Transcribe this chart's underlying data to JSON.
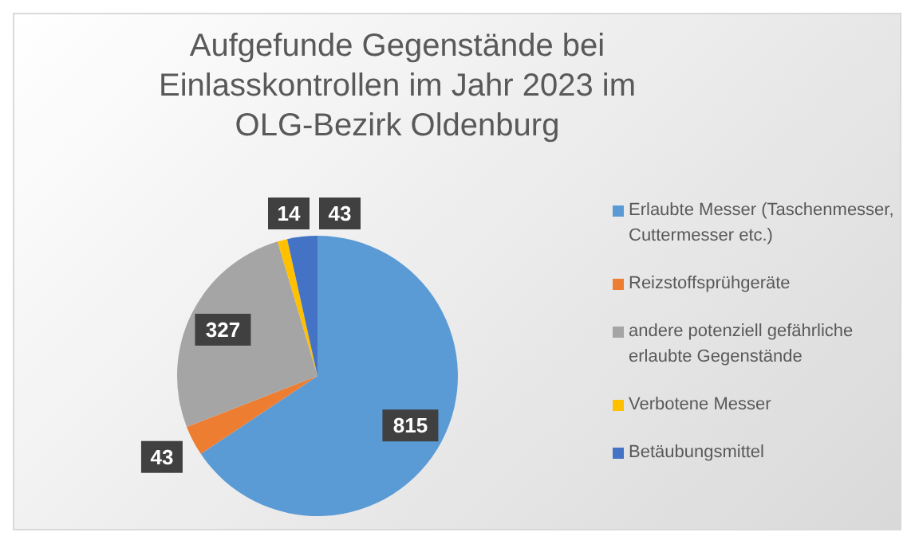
{
  "chart_data": {
    "type": "pie",
    "title": "Aufgefunde Gegenstände bei Einlasskontrollen im Jahr 2023 im OLG-Bezirk Oldenburg",
    "categories": [
      "Erlaubte Messer (Taschenmesser, Cuttermesser etc.)",
      "Reizstoffsprühgeräte",
      "andere potenziell gefährliche erlaubte Gegenstände",
      "Verbotene Messer",
      "Betäubungsmittel"
    ],
    "values": [
      815,
      43,
      327,
      14,
      43
    ],
    "colors": [
      "#5b9bd5",
      "#ed7d31",
      "#a5a5a5",
      "#ffc000",
      "#4472c4"
    ],
    "data_labels": true,
    "legend": "right"
  }
}
